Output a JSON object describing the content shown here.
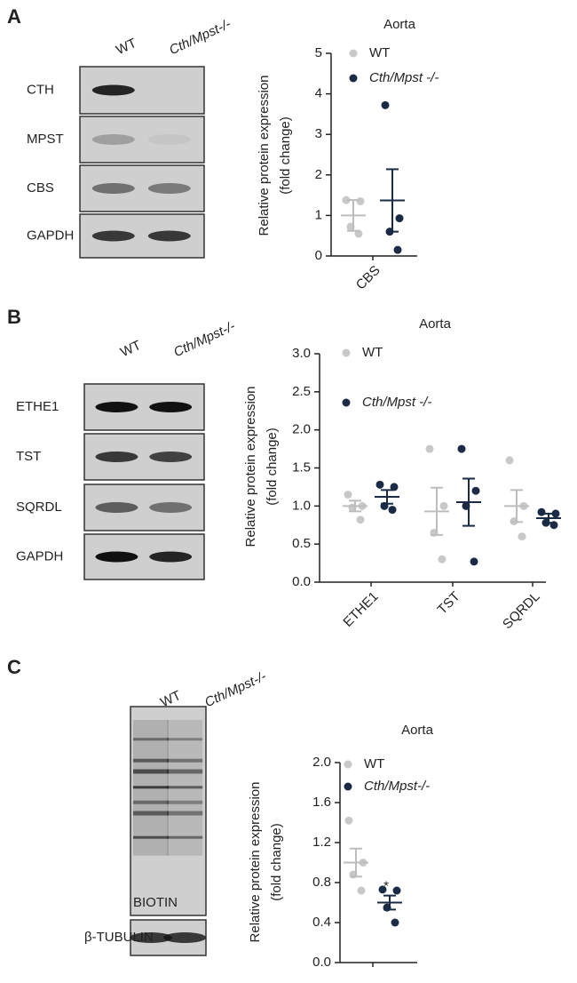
{
  "blots": [
    {
      "panel": "A",
      "lanes": [
        "WT",
        "Cth/Mpst-/-"
      ],
      "rows": [
        "CTH",
        "MPST",
        "CBS",
        "GAPDH"
      ]
    },
    {
      "panel": "B",
      "lanes": [
        "WT",
        "Cth/Mpst-/-"
      ],
      "rows": [
        "ETHE1",
        "TST",
        "SQRDL",
        "GAPDH"
      ]
    },
    {
      "panel": "C",
      "lanes": [
        "WT",
        "Cth/Mpst-/-"
      ],
      "rows": [
        "BIOTIN",
        "β-TUBULIN"
      ]
    }
  ],
  "chart_data": [
    {
      "type": "dotplot",
      "title": "Aorta",
      "ylabel": [
        "Relative protein expression",
        "(fold change)"
      ],
      "categories": [
        "CBS"
      ],
      "series": [
        {
          "name": "WT",
          "color": "#c8c8c8",
          "values": [
            [
              1.38,
              1.35,
              0.72,
              0.55
            ]
          ],
          "mean": [
            1.0
          ],
          "sem": [
            0.38
          ]
        },
        {
          "name": "Cth/Mpst -/-",
          "color": "#1b2a45",
          "values": [
            [
              3.72,
              0.93,
              0.6,
              0.15
            ]
          ],
          "mean": [
            1.37
          ],
          "sem": [
            0.77
          ]
        }
      ],
      "ylim": [
        0,
        5
      ],
      "yticks": [
        0,
        1,
        2,
        3,
        4,
        5
      ]
    },
    {
      "type": "dotplot",
      "title": "Aorta",
      "ylabel": [
        "Relative protein expression",
        "(fold change)"
      ],
      "categories": [
        "ETHE1",
        "TST",
        "SQRDL"
      ],
      "series": [
        {
          "name": "WT",
          "color": "#c8c8c8",
          "values": [
            [
              1.15,
              1.0,
              0.98,
              0.82
            ],
            [
              1.75,
              1.0,
              0.65,
              0.3
            ],
            [
              1.6,
              1.0,
              0.8,
              0.6
            ]
          ],
          "mean": [
            1.0,
            0.93,
            1.0
          ],
          "sem": [
            0.07,
            0.31,
            0.21
          ]
        },
        {
          "name": "Cth/Mpst -/-",
          "color": "#1b2a45",
          "values": [
            [
              1.28,
              1.25,
              1.0,
              0.95
            ],
            [
              1.75,
              1.2,
              1.0,
              0.27
            ],
            [
              0.92,
              0.9,
              0.78,
              0.75
            ]
          ],
          "mean": [
            1.12,
            1.05,
            0.84
          ],
          "sem": [
            0.09,
            0.31,
            0.06
          ]
        }
      ],
      "ylim": [
        0,
        3
      ],
      "yticks": [
        {
          "value": 0,
          "label": "0.0"
        },
        0.5,
        {
          "value": 1,
          "label": "1.0"
        },
        1.5,
        {
          "value": 2,
          "label": "2.0"
        },
        2.5,
        {
          "value": 3,
          "label": "3.0"
        }
      ]
    },
    {
      "type": "dotplot",
      "title": "Aorta",
      "ylabel": [
        "Relative protein expression",
        "(fold change)"
      ],
      "categories": [
        null
      ],
      "series": [
        {
          "name": "WT",
          "color": "#c8c8c8",
          "values": [
            [
              1.42,
              1.0,
              0.88,
              0.72
            ]
          ],
          "mean": [
            1.0
          ],
          "sem": [
            0.14
          ]
        },
        {
          "name": "Cth/Mpst-/-",
          "color": "#1b2a45",
          "values": [
            [
              0.73,
              0.72,
              0.55,
              0.4
            ]
          ],
          "mean": [
            0.6
          ],
          "sem": [
            0.07
          ]
        }
      ],
      "annotation": "*",
      "ylim": [
        0,
        2
      ],
      "yticks": [
        {
          "value": 0,
          "label": "0.0"
        },
        0.4,
        0.8,
        1.2,
        1.6,
        {
          "value": 2,
          "label": "2.0"
        }
      ]
    }
  ]
}
